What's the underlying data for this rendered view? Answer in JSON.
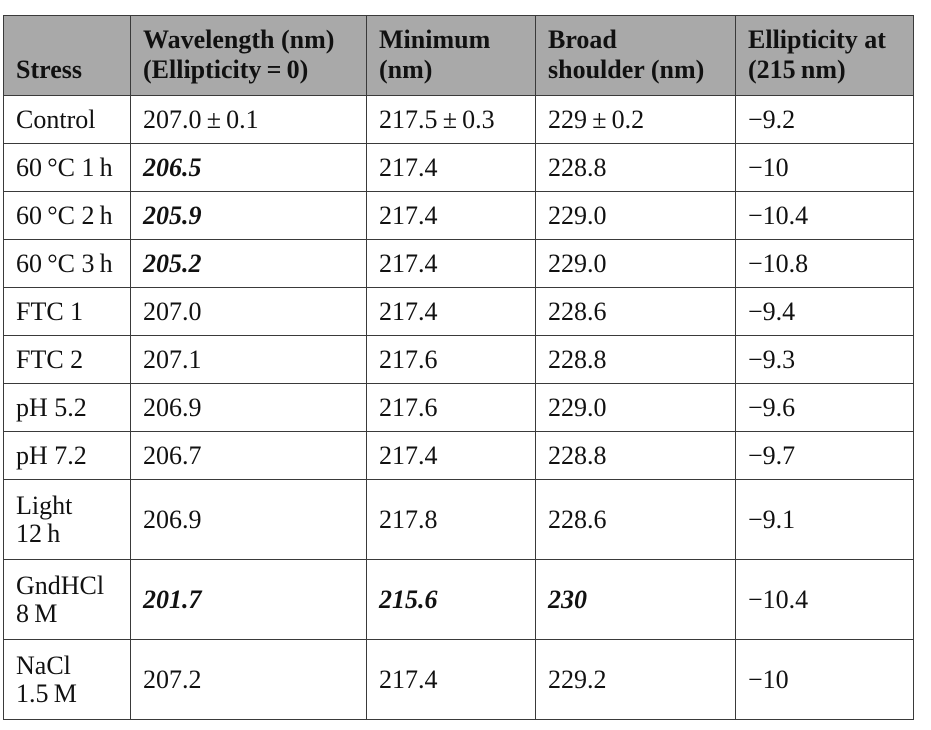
{
  "table": {
    "headers": [
      [
        "Stress"
      ],
      [
        "Wavelength (nm)",
        "(Ellipticity = 0)"
      ],
      [
        "Minimum",
        "(nm)"
      ],
      [
        "Broad",
        "shoulder (nm)"
      ],
      [
        "Ellipticity at",
        "(215 nm)"
      ]
    ],
    "rows": [
      {
        "stress": [
          "Control"
        ],
        "wavelength": "207.0 ± 0.1",
        "wavelength_emph": false,
        "minimum": "217.5 ± 0.3",
        "minimum_emph": false,
        "shoulder": "229 ± 0.2",
        "shoulder_emph": false,
        "ellipticity": "−9.2"
      },
      {
        "stress": [
          "60 °C 1 h"
        ],
        "wavelength": "206.5",
        "wavelength_emph": true,
        "minimum": "217.4",
        "minimum_emph": false,
        "shoulder": "228.8",
        "shoulder_emph": false,
        "ellipticity": "−10"
      },
      {
        "stress": [
          "60 °C 2 h"
        ],
        "wavelength": "205.9",
        "wavelength_emph": true,
        "minimum": "217.4",
        "minimum_emph": false,
        "shoulder": "229.0",
        "shoulder_emph": false,
        "ellipticity": "−10.4"
      },
      {
        "stress": [
          "60 °C 3 h"
        ],
        "wavelength": "205.2",
        "wavelength_emph": true,
        "minimum": "217.4",
        "minimum_emph": false,
        "shoulder": "229.0",
        "shoulder_emph": false,
        "ellipticity": "−10.8"
      },
      {
        "stress": [
          "FTC 1"
        ],
        "wavelength": "207.0",
        "wavelength_emph": false,
        "minimum": "217.4",
        "minimum_emph": false,
        "shoulder": "228.6",
        "shoulder_emph": false,
        "ellipticity": "−9.4"
      },
      {
        "stress": [
          "FTC 2"
        ],
        "wavelength": "207.1",
        "wavelength_emph": false,
        "minimum": "217.6",
        "minimum_emph": false,
        "shoulder": "228.8",
        "shoulder_emph": false,
        "ellipticity": "−9.3"
      },
      {
        "stress": [
          "pH 5.2"
        ],
        "wavelength": "206.9",
        "wavelength_emph": false,
        "minimum": "217.6",
        "minimum_emph": false,
        "shoulder": "229.0",
        "shoulder_emph": false,
        "ellipticity": "−9.6"
      },
      {
        "stress": [
          "pH 7.2"
        ],
        "wavelength": "206.7",
        "wavelength_emph": false,
        "minimum": "217.4",
        "minimum_emph": false,
        "shoulder": "228.8",
        "shoulder_emph": false,
        "ellipticity": "−9.7"
      },
      {
        "stress": [
          "Light",
          "12 h"
        ],
        "wavelength": "206.9",
        "wavelength_emph": false,
        "minimum": "217.8",
        "minimum_emph": false,
        "shoulder": "228.6",
        "shoulder_emph": false,
        "ellipticity": "−9.1"
      },
      {
        "stress": [
          "GndHCl",
          "8 M"
        ],
        "wavelength": "201.7",
        "wavelength_emph": true,
        "minimum": "215.6",
        "minimum_emph": true,
        "shoulder": "230",
        "shoulder_emph": true,
        "ellipticity": "−10.4"
      },
      {
        "stress": [
          "NaCl",
          "1.5 M"
        ],
        "wavelength": "207.2",
        "wavelength_emph": false,
        "minimum": "217.4",
        "minimum_emph": false,
        "shoulder": "229.2",
        "shoulder_emph": false,
        "ellipticity": "−10"
      }
    ]
  }
}
